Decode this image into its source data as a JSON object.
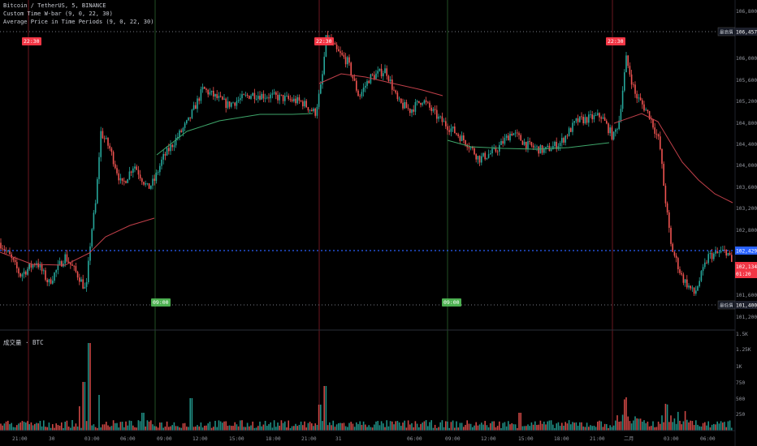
{
  "header": {
    "symbol_line": "Bitcoin / TetherUS, 5, BINANCE",
    "indicator_1": "Custom Time W-bar (9, 0, 22, 30)",
    "indicator_2": "Average Price in Time Periods (9, 0, 22, 30)"
  },
  "price_axis": {
    "ticks": [
      "106,800.00",
      "106,000.00",
      "105,600.00",
      "105,200.00",
      "104,800.00",
      "104,400.00",
      "104,000.00",
      "103,600.00",
      "103,200.00",
      "102,800.00",
      "101,600.00",
      "101,200.00"
    ],
    "high_label": "最高價",
    "high_value": "106,457.44",
    "low_label": "最低價",
    "low_value": "101,400.01",
    "current_value": "102,429.56",
    "last_value": "102,134.06",
    "countdown": "01:20"
  },
  "volume_panel": {
    "label": "成交量 · BTC",
    "ticks": [
      "1.5K",
      "1.25K",
      "1K",
      "750",
      "500",
      "250"
    ]
  },
  "time_axis": {
    "ticks": [
      "21:00",
      "30",
      "03:00",
      "06:00",
      "09:00",
      "12:00",
      "15:00",
      "18:00",
      "21:00",
      "31",
      "06:00",
      "09:00",
      "12:00",
      "15:00",
      "18:00",
      "21:00",
      "二月",
      "03:00",
      "06:00"
    ]
  },
  "colors": {
    "background": "#000000",
    "up": "#26a69a",
    "down": "#ef5350",
    "ma_red": "#c2404a",
    "ma_green": "#3ea66a",
    "current_line": "#2962ff",
    "period_start": "#f23645",
    "period_end": "#4caf50"
  }
}
